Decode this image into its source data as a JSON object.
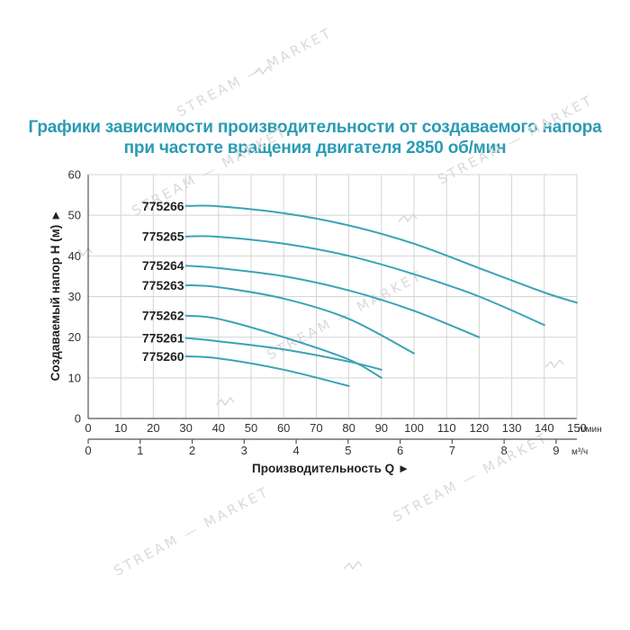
{
  "title": {
    "line1": "Графики зависимости производительности от создаваемого напора",
    "line2": "при частоте вращения двигателя 2850 об/мин"
  },
  "colors": {
    "title": "#2a9bb4",
    "curve": "#3aa3b4",
    "grid": "#d4d4d4"
  },
  "chart_data": {
    "type": "line",
    "title": "Графики зависимости производительности от создаваемого напора при частоте вращения двигателя 2850 об/мин",
    "ylabel": "Создаваемый напор H (м) ►",
    "xlabel": "Производительность Q ►",
    "ylim": [
      0,
      60
    ],
    "yticks": [
      0,
      10,
      20,
      30,
      40,
      50,
      60
    ],
    "xlim_lmin": [
      0,
      150
    ],
    "xticks_lmin": [
      0,
      10,
      20,
      30,
      40,
      50,
      60,
      70,
      80,
      90,
      100,
      110,
      120,
      130,
      140,
      150
    ],
    "x_unit_lmin": "л/мин",
    "xticks_m3h": [
      0,
      1,
      2,
      3,
      4,
      5,
      6,
      7,
      8,
      9
    ],
    "x_unit_m3h": "м³/ч",
    "grid": true,
    "series": [
      {
        "name": "775266",
        "x": [
          30,
          40,
          60,
          80,
          100,
          120,
          140,
          150
        ],
        "y": [
          52.3,
          52.2,
          50.5,
          47.5,
          43,
          37,
          31,
          28.5
        ]
      },
      {
        "name": "775265",
        "x": [
          30,
          40,
          60,
          80,
          100,
          120,
          140
        ],
        "y": [
          44.8,
          44.7,
          43,
          40,
          35.5,
          30,
          23
        ]
      },
      {
        "name": "775264",
        "x": [
          30,
          40,
          60,
          80,
          100,
          120
        ],
        "y": [
          37.6,
          37,
          35,
          31.5,
          26.5,
          20
        ]
      },
      {
        "name": "775263",
        "x": [
          30,
          40,
          60,
          80,
          100
        ],
        "y": [
          32.8,
          32.3,
          29.5,
          24.5,
          16
        ]
      },
      {
        "name": "775262",
        "x": [
          30,
          40,
          60,
          80,
          90
        ],
        "y": [
          25.3,
          24.5,
          20,
          14.5,
          10
        ]
      },
      {
        "name": "775261",
        "x": [
          30,
          40,
          60,
          80,
          90
        ],
        "y": [
          19.8,
          19,
          17,
          14,
          12
        ]
      },
      {
        "name": "775260",
        "x": [
          30,
          40,
          60,
          80
        ],
        "y": [
          15.3,
          14.8,
          12,
          8
        ]
      }
    ]
  },
  "watermark": {
    "text": "STREAM — MARKET"
  }
}
